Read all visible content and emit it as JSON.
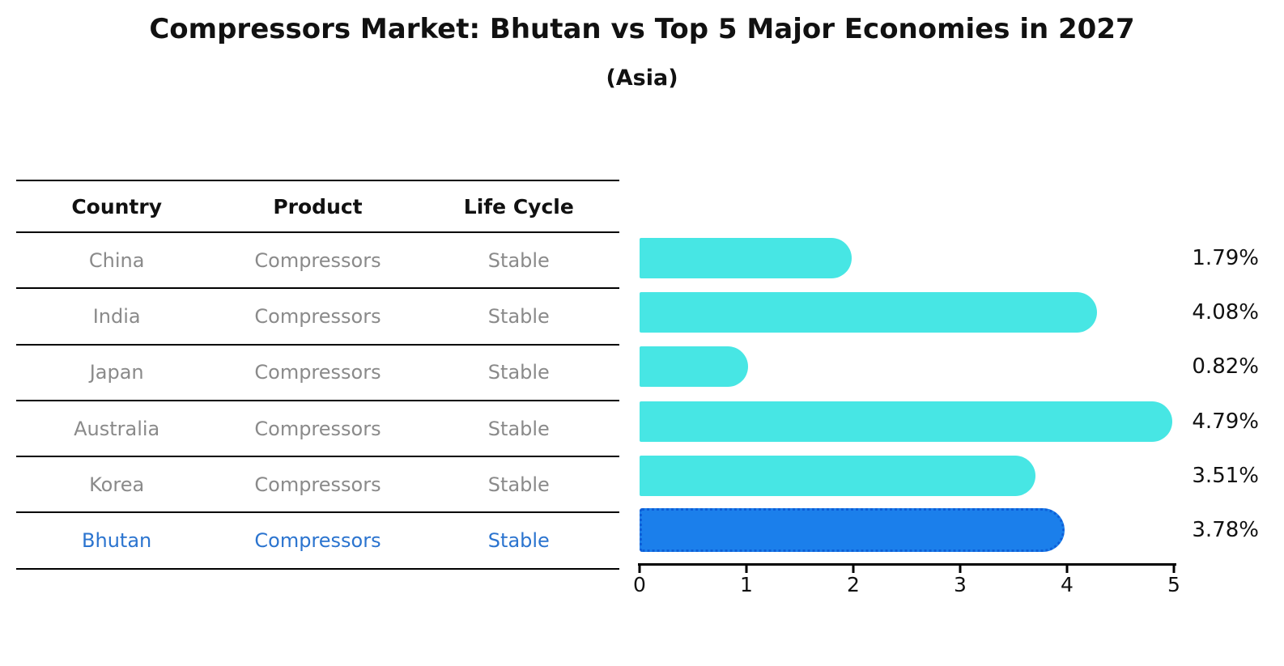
{
  "title": "Compressors Market: Bhutan vs Top 5 Major Economies in 2027",
  "subtitle": "(Asia)",
  "table": {
    "headers": [
      "Country",
      "Product",
      "Life Cycle"
    ],
    "rows": [
      {
        "country": "China",
        "product": "Compressors",
        "life_cycle": "Stable",
        "highlight": false
      },
      {
        "country": "India",
        "product": "Compressors",
        "life_cycle": "Stable",
        "highlight": false
      },
      {
        "country": "Japan",
        "product": "Compressors",
        "life_cycle": "Stable",
        "highlight": false
      },
      {
        "country": "Australia",
        "product": "Compressors",
        "life_cycle": "Stable",
        "highlight": false
      },
      {
        "country": "Korea",
        "product": "Compressors",
        "life_cycle": "Stable",
        "highlight": false
      },
      {
        "country": "Bhutan",
        "product": "Compressors",
        "life_cycle": "Stable",
        "highlight": true
      }
    ]
  },
  "chart_data": {
    "type": "bar",
    "orientation": "horizontal",
    "categories": [
      "China",
      "India",
      "Japan",
      "Australia",
      "Korea",
      "Bhutan"
    ],
    "values": [
      1.79,
      4.08,
      0.82,
      4.79,
      3.51,
      3.78
    ],
    "value_labels": [
      "1.79%",
      "4.08%",
      "0.82%",
      "4.79%",
      "3.51%",
      "3.78%"
    ],
    "title": "Compressors Market: Bhutan vs Top 5 Major Economies in 2027",
    "subtitle": "(Asia)",
    "xlabel": "",
    "ylabel": "",
    "xlim": [
      0,
      5
    ],
    "x_ticks": [
      0,
      1,
      2,
      3,
      4,
      5
    ],
    "x_tick_labels": [
      "0",
      "1",
      "2",
      "3",
      "4",
      "5"
    ],
    "grid": false,
    "legend": false,
    "bar_color": "#47E6E4",
    "highlight_index": 5,
    "highlight_bar_color": "#1B7FEB",
    "highlight_bar_edge_color": "#0E5FD8",
    "highlight_text_color": "#2B74CF",
    "row_text_color": "#8a8a8a"
  }
}
